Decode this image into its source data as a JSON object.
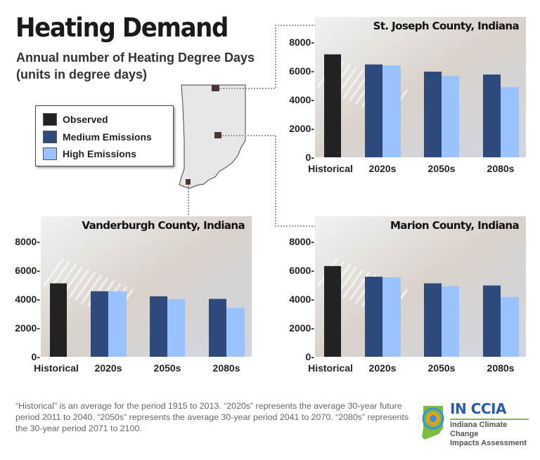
{
  "header": {
    "title": "Heating Demand",
    "subtitle_line1": "Annual number of Heating Degree Days",
    "subtitle_line2": "(units in degree days)"
  },
  "legend": {
    "items": [
      {
        "label": "Observed",
        "color": "#222222"
      },
      {
        "label": "Medium Emissions",
        "color": "#2e4a7d"
      },
      {
        "label": "High Emissions",
        "color": "#99c2ff"
      }
    ]
  },
  "footer": {
    "note": "“Historical” is an average for the period 1915 to 2013. “2020s” represents the average 30-year future period 2011 to 2040. “2050s” represents the average 30-year period 2041 to 2070. “2080s” represents the 30-year period 2071 to 2100."
  },
  "logo": {
    "acronym": "IN CCIA",
    "name_line1": "Indiana Climate Change",
    "name_line2": "Impacts Assessment"
  },
  "chart_data": [
    {
      "type": "bar",
      "title": "St. Joseph County, Indiana",
      "categories": [
        "Historical",
        "2020s",
        "2050s",
        "2080s"
      ],
      "ylim": [
        0,
        8000
      ],
      "yticks": [
        "0-",
        "2000-",
        "4000-",
        "6000-",
        "8000-"
      ],
      "series": [
        {
          "name": "Observed",
          "values": [
            7150,
            null,
            null,
            null
          ]
        },
        {
          "name": "Medium Emissions",
          "values": [
            null,
            6450,
            5950,
            5750
          ]
        },
        {
          "name": "High Emissions",
          "values": [
            null,
            6380,
            5650,
            4880
          ]
        }
      ]
    },
    {
      "type": "bar",
      "title": "Vanderburgh County, Indiana",
      "categories": [
        "Historical",
        "2020s",
        "2050s",
        "2080s"
      ],
      "ylim": [
        0,
        8000
      ],
      "yticks": [
        "0-",
        "2000-",
        "4000-",
        "6000-",
        "8000-"
      ],
      "series": [
        {
          "name": "Observed",
          "values": [
            5100,
            null,
            null,
            null
          ]
        },
        {
          "name": "Medium Emissions",
          "values": [
            null,
            4550,
            4200,
            4020
          ]
        },
        {
          "name": "High Emissions",
          "values": [
            null,
            4550,
            4000,
            3400
          ]
        }
      ]
    },
    {
      "type": "bar",
      "title": "Marion County, Indiana",
      "categories": [
        "Historical",
        "2020s",
        "2050s",
        "2080s"
      ],
      "ylim": [
        0,
        8000
      ],
      "yticks": [
        "0-",
        "2000-",
        "4000-",
        "6000-",
        "8000-"
      ],
      "series": [
        {
          "name": "Observed",
          "values": [
            6300,
            null,
            null,
            null
          ]
        },
        {
          "name": "Medium Emissions",
          "values": [
            null,
            5560,
            5100,
            4950
          ]
        },
        {
          "name": "High Emissions",
          "values": [
            null,
            5520,
            4900,
            4150
          ]
        }
      ]
    }
  ]
}
